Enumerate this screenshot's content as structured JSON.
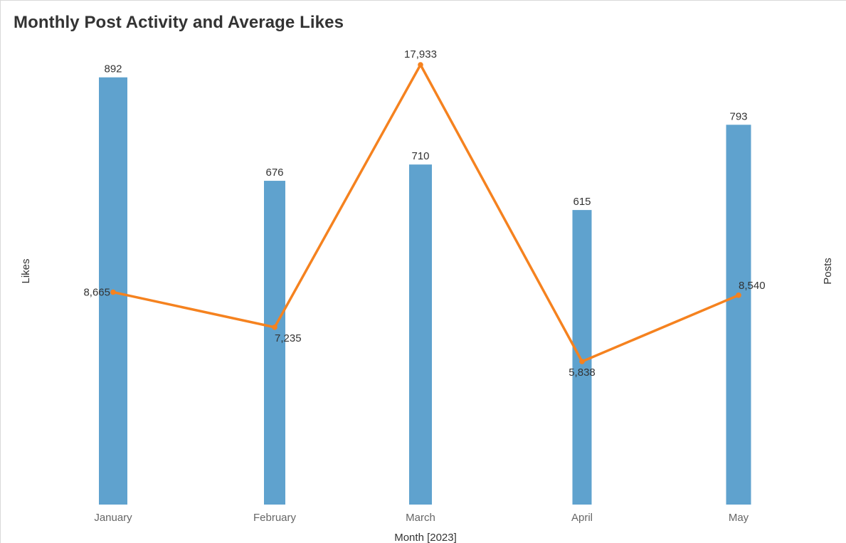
{
  "title": "Monthly Post Activity and Average Likes",
  "chart_data": {
    "type": "bar+line",
    "title": "Monthly Post Activity and Average Likes",
    "xlabel": "Month [2023]",
    "ylabel_left": "Likes",
    "ylabel_right": "Posts",
    "categories": [
      "January",
      "February",
      "March",
      "April",
      "May"
    ],
    "series": [
      {
        "name": "Posts",
        "type": "bar",
        "axis": "right",
        "color": "#5fa2ce",
        "values": [
          892,
          676,
          710,
          615,
          793
        ],
        "labels": [
          "892",
          "676",
          "710",
          "615",
          "793"
        ]
      },
      {
        "name": "Likes",
        "type": "line",
        "axis": "left",
        "color": "#f5821f",
        "values": [
          8665,
          7235,
          17933,
          5838,
          8540
        ],
        "labels": [
          "8,665",
          "7,235",
          "17,933",
          "5,838",
          "8,540"
        ]
      }
    ],
    "ylim_left": [
      0,
      19000
    ],
    "ylim_right": [
      0,
      900
    ],
    "grid": false,
    "legend": "none"
  }
}
